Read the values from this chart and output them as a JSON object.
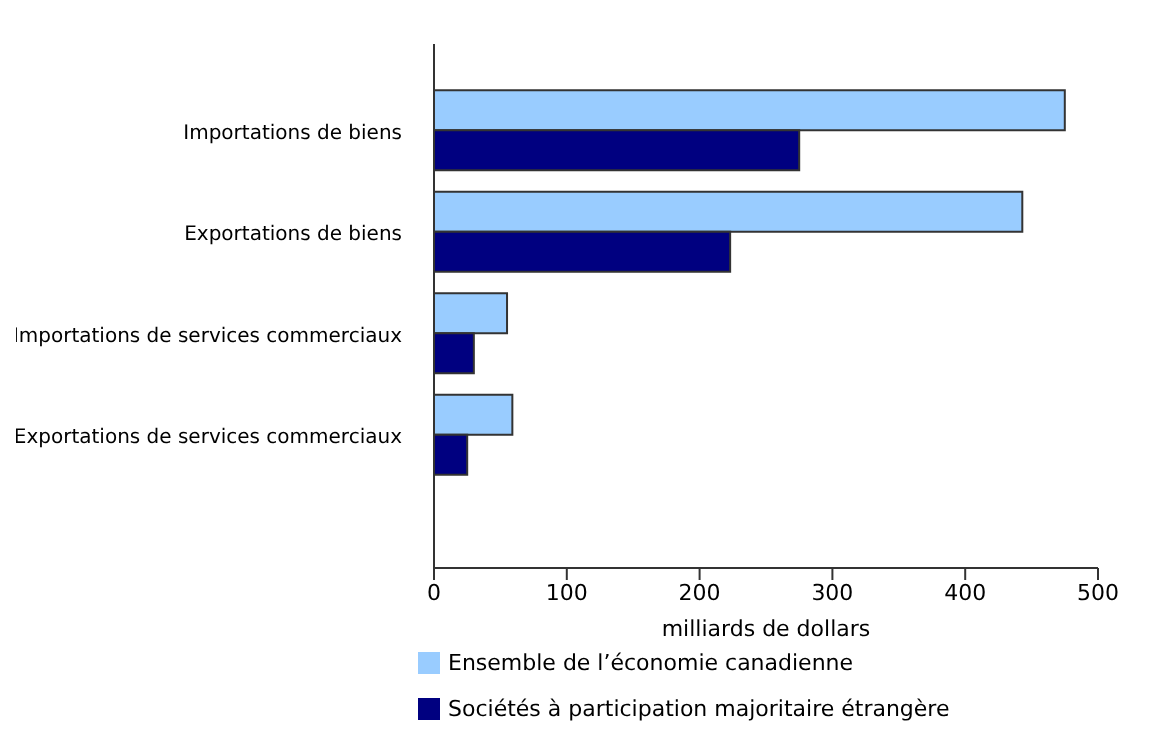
{
  "chart_data": {
    "type": "bar",
    "orientation": "horizontal",
    "xlabel": "milliards de dollars",
    "categories": [
      "Importations de biens",
      "Exportations de biens",
      "Importations de services commerciaux",
      "Exportations de services commerciaux"
    ],
    "series": [
      {
        "name": "Ensemble de l’économie canadienne",
        "color": "#99ccff",
        "values": [
          475,
          443,
          55,
          59
        ]
      },
      {
        "name": "Sociétés à participation majoritaire étrangère",
        "color": "#000080",
        "values": [
          275,
          223,
          30,
          25
        ]
      }
    ],
    "xlim": [
      0,
      500
    ],
    "xticks": [
      0,
      100,
      200,
      300,
      400,
      500
    ],
    "grid": false,
    "legend": "bottom"
  }
}
